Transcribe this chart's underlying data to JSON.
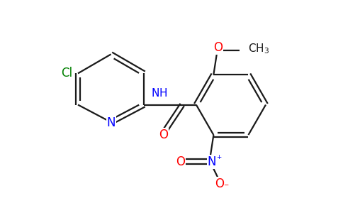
{
  "bg_color": "#ffffff",
  "bond_color": "#1a1a1a",
  "cl_color": "#008000",
  "n_color": "#0000ff",
  "o_color": "#ff0000",
  "line_width": 1.6,
  "dbo": 0.07,
  "figsize": [
    4.84,
    3.0
  ],
  "dpi": 100,
  "xlim": [
    0,
    9.68
  ],
  "ylim": [
    0,
    6.0
  ]
}
